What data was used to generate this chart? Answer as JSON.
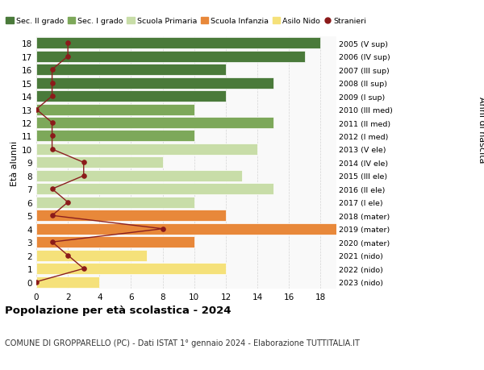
{
  "ages": [
    0,
    1,
    2,
    3,
    4,
    5,
    6,
    7,
    8,
    9,
    10,
    11,
    12,
    13,
    14,
    15,
    16,
    17,
    18
  ],
  "right_labels": [
    "2023 (nido)",
    "2022 (nido)",
    "2021 (nido)",
    "2020 (mater)",
    "2019 (mater)",
    "2018 (mater)",
    "2017 (I ele)",
    "2016 (II ele)",
    "2015 (III ele)",
    "2014 (IV ele)",
    "2013 (V ele)",
    "2012 (I med)",
    "2011 (II med)",
    "2010 (III med)",
    "2009 (I sup)",
    "2008 (II sup)",
    "2007 (III sup)",
    "2006 (IV sup)",
    "2005 (V sup)"
  ],
  "bar_values": [
    4,
    12,
    7,
    10,
    19,
    12,
    10,
    15,
    13,
    8,
    14,
    10,
    15,
    10,
    12,
    15,
    12,
    17,
    18
  ],
  "stranieri": [
    0,
    3,
    2,
    1,
    8,
    1,
    2,
    1,
    3,
    3,
    1,
    1,
    1,
    0,
    1,
    1,
    1,
    2,
    2
  ],
  "bar_colors": [
    "#f5e17a",
    "#f5e17a",
    "#f5e17a",
    "#e8883a",
    "#e8883a",
    "#e8883a",
    "#c8dda8",
    "#c8dda8",
    "#c8dda8",
    "#c8dda8",
    "#c8dda8",
    "#7da85a",
    "#7da85a",
    "#7da85a",
    "#4a7a3a",
    "#4a7a3a",
    "#4a7a3a",
    "#4a7a3a",
    "#4a7a3a"
  ],
  "legend_labels": [
    "Sec. II grado",
    "Sec. I grado",
    "Scuola Primaria",
    "Scuola Infanzia",
    "Asilo Nido",
    "Stranieri"
  ],
  "legend_colors": [
    "#4a7a3a",
    "#7da85a",
    "#c8dda8",
    "#e8883a",
    "#f5e17a",
    "#8b1a1a"
  ],
  "title": "Popolazione per età scolastica - 2024",
  "subtitle": "COMUNE DI GROPPARELLO (PC) - Dati ISTAT 1° gennaio 2024 - Elaborazione TUTTITALIA.IT",
  "ylabel_left": "Età alunni",
  "ylabel_right": "Anni di nascita",
  "xlim": [
    0,
    19
  ],
  "xticks": [
    0,
    2,
    4,
    6,
    8,
    10,
    12,
    14,
    16,
    18
  ],
  "stranieri_line_color": "#8b2020",
  "stranieri_dot_color": "#8b1a1a",
  "bg_color": "#f9f9f9"
}
